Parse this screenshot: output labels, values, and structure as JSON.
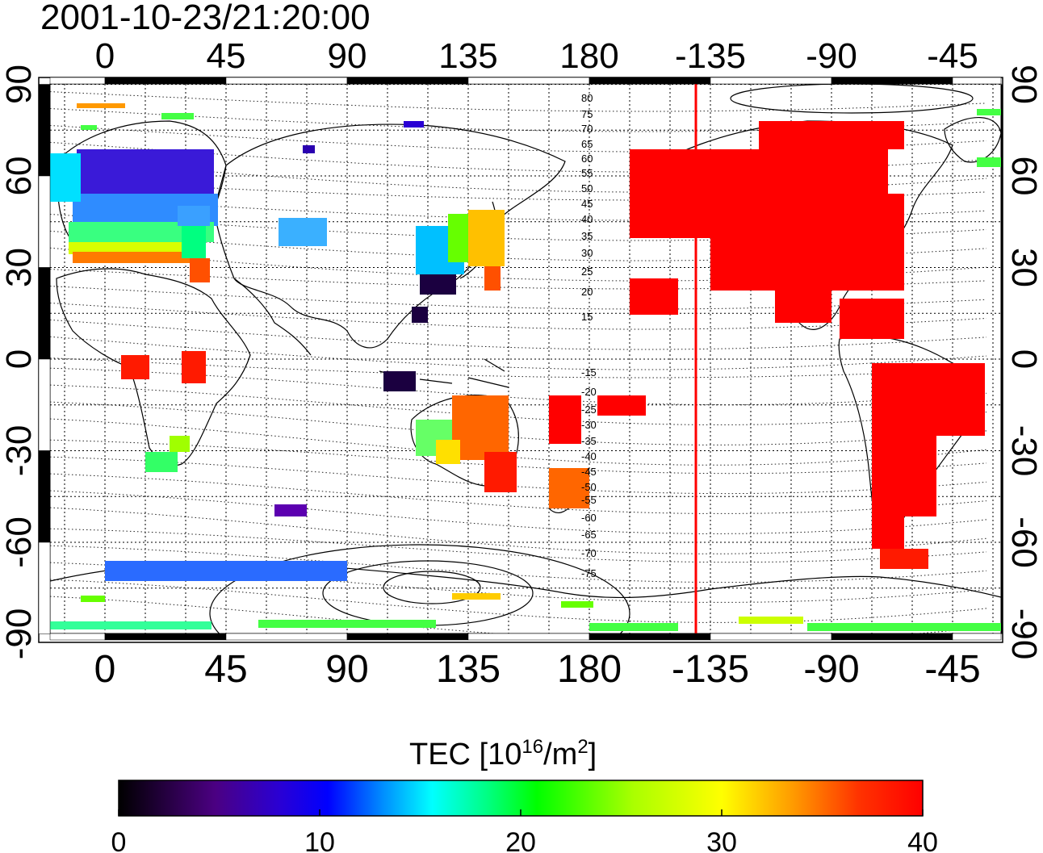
{
  "timestamp": "2001-10-23/21:20:00",
  "axes": {
    "top_lon_labels": [
      "0",
      "45",
      "90",
      "135",
      "180",
      "-135",
      "-90",
      "-45"
    ],
    "bottom_lon_labels": [
      "0",
      "45",
      "90",
      "135",
      "180",
      "-135",
      "-90",
      "-45"
    ],
    "left_lat_labels": [
      "90",
      "60",
      "30",
      "0",
      "-30",
      "-60",
      "-90"
    ],
    "right_lat_labels": [
      "90",
      "60",
      "30",
      "0",
      "-30",
      "-60",
      "-90"
    ]
  },
  "contour_labels_north": [
    "80",
    "75",
    "70",
    "65",
    "60",
    "55",
    "50",
    "45",
    "40",
    "35",
    "30",
    "25",
    "20",
    "15"
  ],
  "contour_labels_south": [
    "-15",
    "-20",
    "-25",
    "-30",
    "-35",
    "-40",
    "-45",
    "-50",
    "-55",
    "-60",
    "-65",
    "-70",
    "-75"
  ],
  "terminator_longitude": -142,
  "colorbar": {
    "title_prefix": "TEC  [10",
    "title_exp": "16",
    "title_mid": "/m",
    "title_exp2": "2",
    "title_suffix": "]",
    "min": 0,
    "max": 40,
    "tick_labels": [
      "0",
      "10",
      "20",
      "30",
      "40"
    ],
    "colors": [
      "#000000",
      "#4b0082",
      "#2a00d4",
      "#0000ff",
      "#00b0ff",
      "#00ffff",
      "#00ff80",
      "#00ff00",
      "#aaff00",
      "#ffff00",
      "#ff9900",
      "#ff3300",
      "#ff0000"
    ]
  }
}
